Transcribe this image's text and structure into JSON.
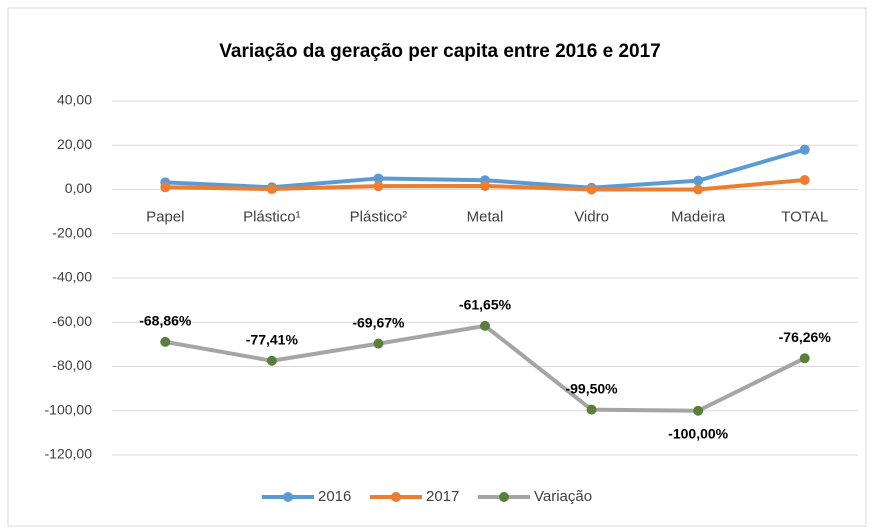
{
  "chart_data": {
    "type": "line",
    "title": "Variação da geração per capita entre 2016 e 2017",
    "categories": [
      "Papel",
      "Plástico¹",
      "Plástico²",
      "Metal",
      "Vidro",
      "Madeira",
      "TOTAL"
    ],
    "series": [
      {
        "name": "2016",
        "color": "#5b9bd5",
        "marker_color": "#5b9bd5",
        "values": [
          3.2,
          1.0,
          5.0,
          4.2,
          0.8,
          4.0,
          18.0
        ]
      },
      {
        "name": "2017",
        "color": "#ed7d31",
        "marker_color": "#ed7d31",
        "values": [
          1.0,
          0.2,
          1.5,
          1.6,
          0.0,
          0.0,
          4.3
        ]
      },
      {
        "name": "Variação",
        "color": "#a5a5a5",
        "marker_color": "#5a7f3b",
        "values": [
          -68.86,
          -77.41,
          -69.67,
          -61.65,
          -99.5,
          -100,
          -76.26
        ],
        "value_labels": [
          "-68,86%",
          "-77,41%",
          "-69,67%",
          "-61,65%",
          "-99,50%",
          "-100,00%",
          "-76,26%"
        ],
        "value_label_positions": [
          "above",
          "above",
          "above",
          "above",
          "above",
          "below",
          "above"
        ]
      }
    ],
    "ylim": [
      -120,
      40
    ],
    "yticks": [
      {
        "value": -120,
        "label": "-120,00"
      },
      {
        "value": -100,
        "label": "-100,00"
      },
      {
        "value": -80,
        "label": "-80,00"
      },
      {
        "value": -60,
        "label": "-60,00"
      },
      {
        "value": -40,
        "label": "-40,00"
      },
      {
        "value": -20,
        "label": "-20,00"
      },
      {
        "value": 0,
        "label": "0,00"
      },
      {
        "value": 20,
        "label": "20,00"
      },
      {
        "value": 40,
        "label": "40,00"
      }
    ],
    "grid": true,
    "legend": "bottom"
  }
}
